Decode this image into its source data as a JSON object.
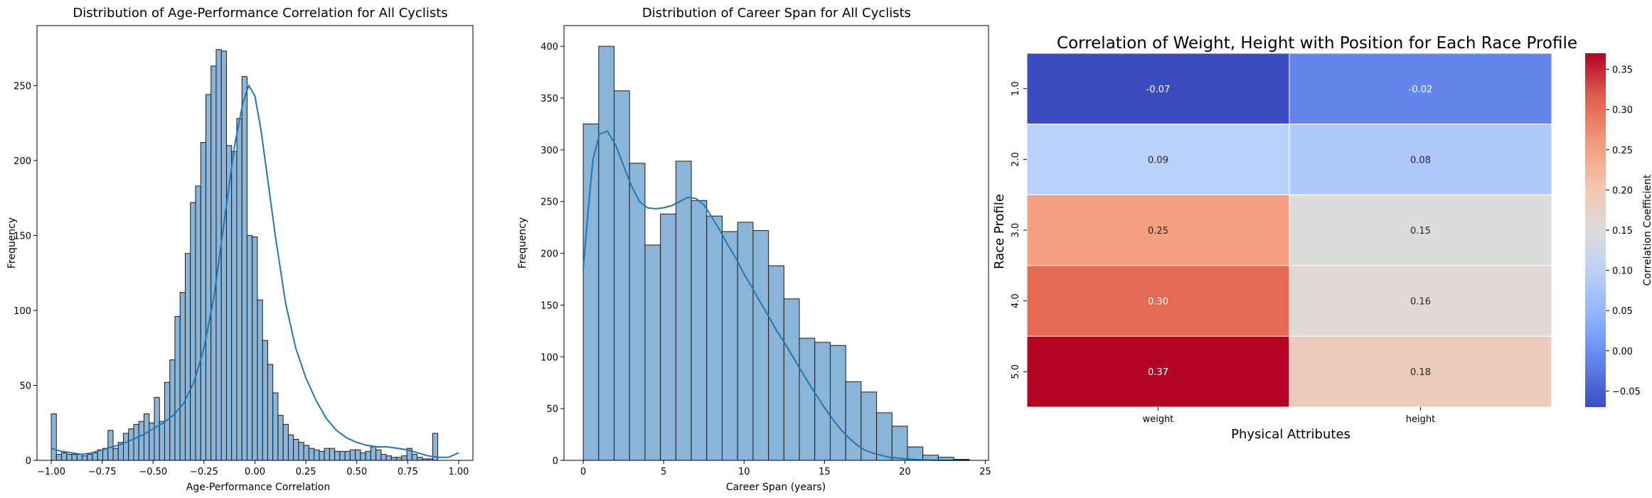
{
  "chart_data": [
    {
      "type": "bar",
      "title": "Distribution of Age-Performance Correlation for All Cyclists",
      "xlabel": "Age-Performance Correlation",
      "ylabel": "Frequency",
      "xlim": [
        -1.07,
        1.07
      ],
      "ylim": [
        0,
        290
      ],
      "xticks": [
        -1.0,
        -0.75,
        -0.5,
        -0.25,
        0.0,
        0.25,
        0.5,
        0.75,
        1.0
      ],
      "xtick_labels": [
        "−1.00",
        "−0.75",
        "−0.50",
        "−0.25",
        "0.00",
        "0.25",
        "0.50",
        "0.75",
        "1.00"
      ],
      "yticks": [
        0,
        50,
        100,
        150,
        200,
        250
      ],
      "bin_start": -1.0,
      "bin_width": 0.0253,
      "values": [
        31,
        4,
        5,
        4,
        4,
        4,
        3,
        4,
        5,
        7,
        8,
        20,
        8,
        12,
        18,
        21,
        24,
        26,
        31,
        25,
        42,
        26,
        52,
        67,
        96,
        112,
        138,
        172,
        183,
        212,
        244,
        263,
        274,
        273,
        210,
        206,
        228,
        256,
        150,
        149,
        107,
        80,
        64,
        45,
        30,
        24,
        17,
        14,
        12,
        10,
        8,
        7,
        6,
        8,
        8,
        6,
        6,
        6,
        7,
        7,
        5,
        6,
        9,
        7,
        4,
        3,
        2,
        2,
        3,
        8,
        4,
        2,
        1,
        1,
        18
      ],
      "kde_points": [
        [
          -1.0,
          8
        ],
        [
          -0.95,
          6
        ],
        [
          -0.9,
          5
        ],
        [
          -0.85,
          4
        ],
        [
          -0.8,
          5
        ],
        [
          -0.75,
          7
        ],
        [
          -0.7,
          9
        ],
        [
          -0.65,
          11
        ],
        [
          -0.6,
          14
        ],
        [
          -0.55,
          17
        ],
        [
          -0.5,
          21
        ],
        [
          -0.45,
          25
        ],
        [
          -0.4,
          30
        ],
        [
          -0.35,
          38
        ],
        [
          -0.3,
          52
        ],
        [
          -0.25,
          75
        ],
        [
          -0.2,
          110
        ],
        [
          -0.15,
          160
        ],
        [
          -0.1,
          210
        ],
        [
          -0.06,
          238
        ],
        [
          -0.03,
          250
        ],
        [
          0.0,
          243
        ],
        [
          0.03,
          220
        ],
        [
          0.06,
          190
        ],
        [
          0.1,
          150
        ],
        [
          0.15,
          105
        ],
        [
          0.2,
          75
        ],
        [
          0.25,
          55
        ],
        [
          0.3,
          40
        ],
        [
          0.35,
          28
        ],
        [
          0.4,
          20
        ],
        [
          0.45,
          15
        ],
        [
          0.5,
          12
        ],
        [
          0.55,
          10
        ],
        [
          0.6,
          9
        ],
        [
          0.65,
          9
        ],
        [
          0.7,
          8
        ],
        [
          0.75,
          7
        ],
        [
          0.8,
          5
        ],
        [
          0.85,
          3
        ],
        [
          0.9,
          2
        ],
        [
          0.95,
          2
        ],
        [
          1.0,
          5
        ]
      ],
      "color": "#1f77b4",
      "bar_fill": "#8bb5d8"
    },
    {
      "type": "bar",
      "title": "Distribution of Career Span for All Cyclists",
      "xlabel": "Career Span (years)",
      "ylabel": "Frequency",
      "xlim": [
        -1.2,
        25.2
      ],
      "ylim": [
        0,
        420
      ],
      "xticks": [
        0,
        5,
        10,
        15,
        20,
        25
      ],
      "xtick_labels": [
        "0",
        "5",
        "10",
        "15",
        "20",
        "25"
      ],
      "yticks": [
        0,
        50,
        100,
        150,
        200,
        250,
        300,
        350,
        400
      ],
      "bin_start": 0,
      "bin_width": 0.96,
      "values": [
        325,
        400,
        357,
        287,
        208,
        238,
        289,
        251,
        236,
        221,
        230,
        222,
        188,
        156,
        118,
        114,
        111,
        76,
        66,
        46,
        33,
        13,
        5,
        3,
        1
      ],
      "kde_points": [
        [
          0,
          185
        ],
        [
          0.3,
          240
        ],
        [
          0.6,
          290
        ],
        [
          1.0,
          315
        ],
        [
          1.5,
          318
        ],
        [
          2.0,
          305
        ],
        [
          2.5,
          285
        ],
        [
          3.0,
          265
        ],
        [
          3.5,
          250
        ],
        [
          4.0,
          244
        ],
        [
          4.5,
          243
        ],
        [
          5.0,
          244
        ],
        [
          5.5,
          246
        ],
        [
          6.0,
          250
        ],
        [
          6.5,
          254
        ],
        [
          7.0,
          253
        ],
        [
          7.5,
          247
        ],
        [
          8.0,
          235
        ],
        [
          8.5,
          222
        ],
        [
          9.0,
          208
        ],
        [
          9.5,
          195
        ],
        [
          10.0,
          180
        ],
        [
          10.5,
          167
        ],
        [
          11.0,
          153
        ],
        [
          11.5,
          140
        ],
        [
          12.0,
          126
        ],
        [
          12.5,
          114
        ],
        [
          13.0,
          101
        ],
        [
          13.5,
          88
        ],
        [
          14.0,
          75
        ],
        [
          14.5,
          63
        ],
        [
          15.0,
          51
        ],
        [
          15.5,
          40
        ],
        [
          16.0,
          30
        ],
        [
          16.5,
          22
        ],
        [
          17.0,
          15
        ],
        [
          17.5,
          10
        ],
        [
          18.0,
          7
        ],
        [
          18.5,
          5
        ],
        [
          19.0,
          3
        ],
        [
          20.0,
          1.5
        ],
        [
          21.0,
          0.5
        ],
        [
          22.0,
          0.2
        ],
        [
          24.0,
          0
        ]
      ],
      "color": "#1f77b4",
      "bar_fill": "#8bb5d8"
    },
    {
      "type": "heatmap",
      "title": "Correlation of Weight,  Height with Position for Each Race Profile",
      "xlabel": "Physical Attributes",
      "ylabel": "Race Profile",
      "x_categories": [
        "weight",
        "height"
      ],
      "y_categories": [
        "1.0",
        "2.0",
        "3.0",
        "4.0",
        "5.0"
      ],
      "values": [
        [
          -0.07,
          -0.02
        ],
        [
          0.09,
          0.08
        ],
        [
          0.25,
          0.15
        ],
        [
          0.3,
          0.16
        ],
        [
          0.37,
          0.18
        ]
      ],
      "value_labels": [
        [
          "-0.07",
          "-0.02"
        ],
        [
          "0.09",
          "0.08"
        ],
        [
          "0.25",
          "0.15"
        ],
        [
          "0.30",
          "0.16"
        ],
        [
          "0.37",
          "0.18"
        ]
      ],
      "label_colors": [
        [
          "#ffffff",
          "#ffffff"
        ],
        [
          "#262626",
          "#262626"
        ],
        [
          "#262626",
          "#262626"
        ],
        [
          "#ffffff",
          "#262626"
        ],
        [
          "#ffffff",
          "#262626"
        ]
      ],
      "cell_colors": [
        [
          "#3b4cc0",
          "#6485ec"
        ],
        [
          "#b9d0f9",
          "#aec9fc"
        ],
        [
          "#f2a081",
          "#dddcdb"
        ],
        [
          "#e36b54",
          "#e0d9d5"
        ],
        [
          "#b40426",
          "#eacbbc"
        ]
      ],
      "colorbar": {
        "label": "Correlation Coefficient",
        "range": [
          -0.07,
          0.37
        ],
        "ticks": [
          -0.05,
          0.0,
          0.05,
          0.1,
          0.15,
          0.2,
          0.25,
          0.3,
          0.35
        ],
        "tick_labels": [
          "−0.05",
          "0.00",
          "0.05",
          "0.10",
          "0.15",
          "0.20",
          "0.25",
          "0.30",
          "0.35"
        ],
        "stops": [
          "#3b4cc0",
          "#6282ea",
          "#8db0fe",
          "#b9d0f9",
          "#dddcdb",
          "#f5c4ac",
          "#f39a7b",
          "#de604d",
          "#b40426"
        ]
      }
    }
  ]
}
